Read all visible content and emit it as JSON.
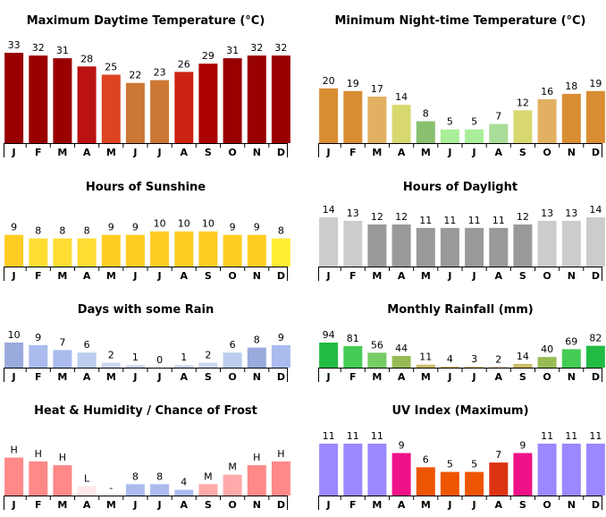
{
  "months": [
    "J",
    "F",
    "M",
    "A",
    "M",
    "J",
    "J",
    "A",
    "S",
    "O",
    "N",
    "D"
  ],
  "chart_data": [
    {
      "id": "max-temp",
      "type": "bar",
      "title": "Maximum Daytime Temperature (°C)",
      "ylim": [
        0,
        33
      ],
      "values": [
        33,
        32,
        31,
        28,
        25,
        22,
        23,
        26,
        29,
        31,
        32,
        32
      ],
      "labels": [
        "33",
        "32",
        "31",
        "28",
        "25",
        "22",
        "23",
        "26",
        "29",
        "31",
        "32",
        "32"
      ],
      "colors": [
        "#990000",
        "#990000",
        "#990000",
        "#bb1111",
        "#dd4422",
        "#cc7733",
        "#cc7733",
        "#cc2211",
        "#aa0000",
        "#990000",
        "#990000",
        "#990000"
      ]
    },
    {
      "id": "min-temp",
      "type": "bar",
      "title": "Minimum Night-time Temperature (°C)",
      "ylim": [
        0,
        33
      ],
      "values": [
        20,
        19,
        17,
        14,
        8,
        5,
        5,
        7,
        12,
        16,
        18,
        19
      ],
      "labels": [
        "20",
        "19",
        "17",
        "14",
        "8",
        "5",
        "5",
        "7",
        "12",
        "16",
        "18",
        "19"
      ],
      "colors": [
        "#d98d33",
        "#d98d33",
        "#e2b062",
        "#d8d870",
        "#88c070",
        "#aaee99",
        "#aaee99",
        "#aadd99",
        "#d8d870",
        "#e2b062",
        "#d98d33",
        "#d98d33"
      ]
    },
    {
      "id": "sunshine",
      "type": "bar",
      "title": "Hours of Sunshine",
      "ylim": [
        0,
        14
      ],
      "values": [
        9,
        8,
        8,
        8,
        9,
        9,
        10,
        10,
        10,
        9,
        9,
        8
      ],
      "labels": [
        "9",
        "8",
        "8",
        "8",
        "9",
        "9",
        "10",
        "10",
        "10",
        "9",
        "9",
        "8"
      ],
      "colors": [
        "#ffcc22",
        "#ffdd33",
        "#ffdd33",
        "#ffdd33",
        "#ffcc22",
        "#ffcc22",
        "#ffcc22",
        "#ffcc22",
        "#ffcc22",
        "#ffcc22",
        "#ffcc22",
        "#ffee33"
      ]
    },
    {
      "id": "daylight",
      "type": "bar",
      "title": "Hours of Daylight",
      "ylim": [
        0,
        14
      ],
      "values": [
        14,
        13,
        12,
        12,
        11,
        11,
        11,
        11,
        12,
        13,
        13,
        14
      ],
      "labels": [
        "14",
        "13",
        "12",
        "12",
        "11",
        "11",
        "11",
        "11",
        "12",
        "13",
        "13",
        "14"
      ],
      "colors": [
        "#cccccc",
        "#cccccc",
        "#999999",
        "#999999",
        "#999999",
        "#999999",
        "#999999",
        "#999999",
        "#999999",
        "#cccccc",
        "#cccccc",
        "#cccccc"
      ]
    },
    {
      "id": "rain-days",
      "type": "bar",
      "title": "Days with some Rain",
      "ylim": [
        0,
        10
      ],
      "values": [
        10,
        9,
        7,
        6,
        2,
        1,
        0,
        1,
        2,
        6,
        8,
        9
      ],
      "labels": [
        "10",
        "9",
        "7",
        "6",
        "2",
        "1",
        "0",
        "1",
        "2",
        "6",
        "8",
        "9"
      ],
      "colors": [
        "#99aadd",
        "#aabbee",
        "#aabbee",
        "#bbccee",
        "#ccd6ee",
        "#ccd6ee",
        "#dde4f4",
        "#ccd6ee",
        "#ccd6ee",
        "#bbccee",
        "#99aadd",
        "#aabbee"
      ]
    },
    {
      "id": "rainfall",
      "type": "bar",
      "title": "Monthly Rainfall (mm)",
      "ylim": [
        0,
        94
      ],
      "values": [
        94,
        81,
        56,
        44,
        11,
        4,
        3,
        2,
        14,
        40,
        69,
        82
      ],
      "labels": [
        "94",
        "81",
        "56",
        "44",
        "11",
        "4",
        "3",
        "2",
        "14",
        "40",
        "69",
        "82"
      ],
      "colors": [
        "#22bb44",
        "#44cc55",
        "#77cc66",
        "#99bb55",
        "#ccbb66",
        "#ddbb77",
        "#ddbb77",
        "#ddbb77",
        "#ccbb66",
        "#99bb55",
        "#44cc55",
        "#22bb44"
      ]
    },
    {
      "id": "humidity",
      "type": "bar",
      "title": "Heat & Humidity / Chance of Frost",
      "ylim": [
        0,
        5
      ],
      "values": [
        4,
        3.6,
        3.2,
        1,
        0,
        1.2,
        1.2,
        0.6,
        1.2,
        2.2,
        3.2,
        3.6
      ],
      "labels": [
        "H",
        "H",
        "H",
        "L",
        "-",
        "8",
        "8",
        "4",
        "M",
        "M",
        "H",
        "H"
      ],
      "colors": [
        "#ff8888",
        "#ff8888",
        "#ff8888",
        "#ffe8e8",
        "#ffffff",
        "#aabbee",
        "#aabbee",
        "#aabbee",
        "#ffaaaa",
        "#ffaaaa",
        "#ff8888",
        "#ff8888"
      ]
    },
    {
      "id": "uv",
      "type": "bar",
      "title": "UV Index (Maximum)",
      "ylim": [
        0,
        11
      ],
      "values": [
        11,
        11,
        11,
        9,
        6,
        5,
        5,
        7,
        9,
        11,
        11,
        11
      ],
      "labels": [
        "11",
        "11",
        "11",
        "9",
        "6",
        "5",
        "5",
        "7",
        "9",
        "11",
        "11",
        "11"
      ],
      "colors": [
        "#9988ff",
        "#9988ff",
        "#9988ff",
        "#ee1188",
        "#ee5500",
        "#ee5500",
        "#ee5500",
        "#dd3311",
        "#ee1188",
        "#9988ff",
        "#9988ff",
        "#9988ff"
      ]
    }
  ]
}
